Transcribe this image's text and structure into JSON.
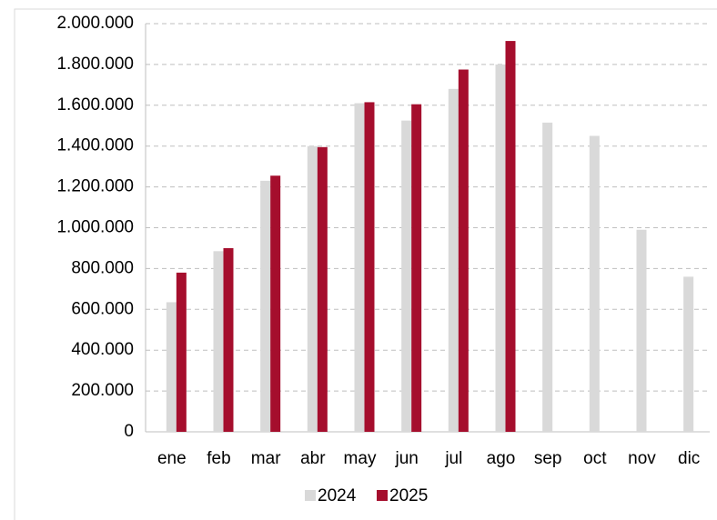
{
  "chart_data": {
    "type": "bar",
    "categories": [
      "ene",
      "feb",
      "mar",
      "abr",
      "may",
      "jun",
      "jul",
      "ago",
      "sep",
      "oct",
      "nov",
      "dic"
    ],
    "series": [
      {
        "name": "2024",
        "color": "#d9d9d9",
        "values": [
          635000,
          885000,
          1230000,
          1400000,
          1610000,
          1525000,
          1680000,
          1800000,
          1515000,
          1450000,
          990000,
          760000
        ]
      },
      {
        "name": "2025",
        "color": "#a50e2d",
        "values": [
          780000,
          900000,
          1255000,
          1395000,
          1615000,
          1605000,
          1775000,
          1915000,
          null,
          null,
          null,
          null
        ]
      }
    ],
    "ylim": [
      0,
      2000000
    ],
    "yticks": [
      0,
      {
        "value": 200000,
        "label": "200.000"
      },
      {
        "value": 400000,
        "label": "400.000"
      },
      {
        "value": 600000,
        "label": "600.000"
      },
      {
        "value": 800000,
        "label": "800.000"
      },
      {
        "value": 1000000,
        "label": "1.000.000"
      },
      {
        "value": 1200000,
        "label": "1.200.000"
      },
      {
        "value": 1400000,
        "label": "1.400.000"
      },
      {
        "value": 1600000,
        "label": "1.600.000"
      },
      {
        "value": 1800000,
        "label": "1.800.000"
      },
      {
        "value": 2000000,
        "label": "2.000.000"
      }
    ],
    "grid": true,
    "legend": "bottom"
  }
}
